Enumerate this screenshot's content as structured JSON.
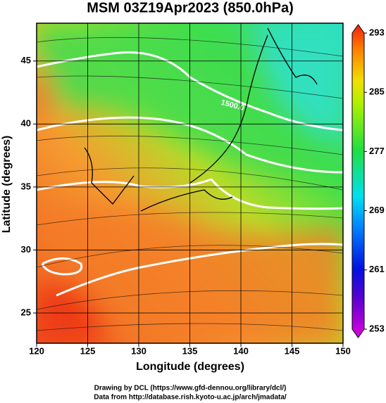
{
  "map": {
    "title": "MSM 03Z19Apr2023 (850.0hPa)",
    "x_label": "Longitude (degrees)",
    "y_label": "Latitude  (degrees)",
    "xlim": [
      120,
      150
    ],
    "ylim": [
      22.6,
      48
    ],
    "xticks": [
      120,
      125,
      130,
      135,
      140,
      145,
      150
    ],
    "yticks": [
      25,
      30,
      35,
      40,
      45
    ],
    "colorbar": {
      "lim": [
        253,
        293
      ],
      "ticks": [
        253,
        261,
        269,
        277,
        285,
        293
      ]
    },
    "contour_label": "1500.0",
    "credit_lines": [
      "Drawing by DCL (https://www.gfd-dennou.org/library/dcl/)",
      "Data from http://database.rish.kyoto-u.ac.jp/arch/jmadata/"
    ]
  }
}
